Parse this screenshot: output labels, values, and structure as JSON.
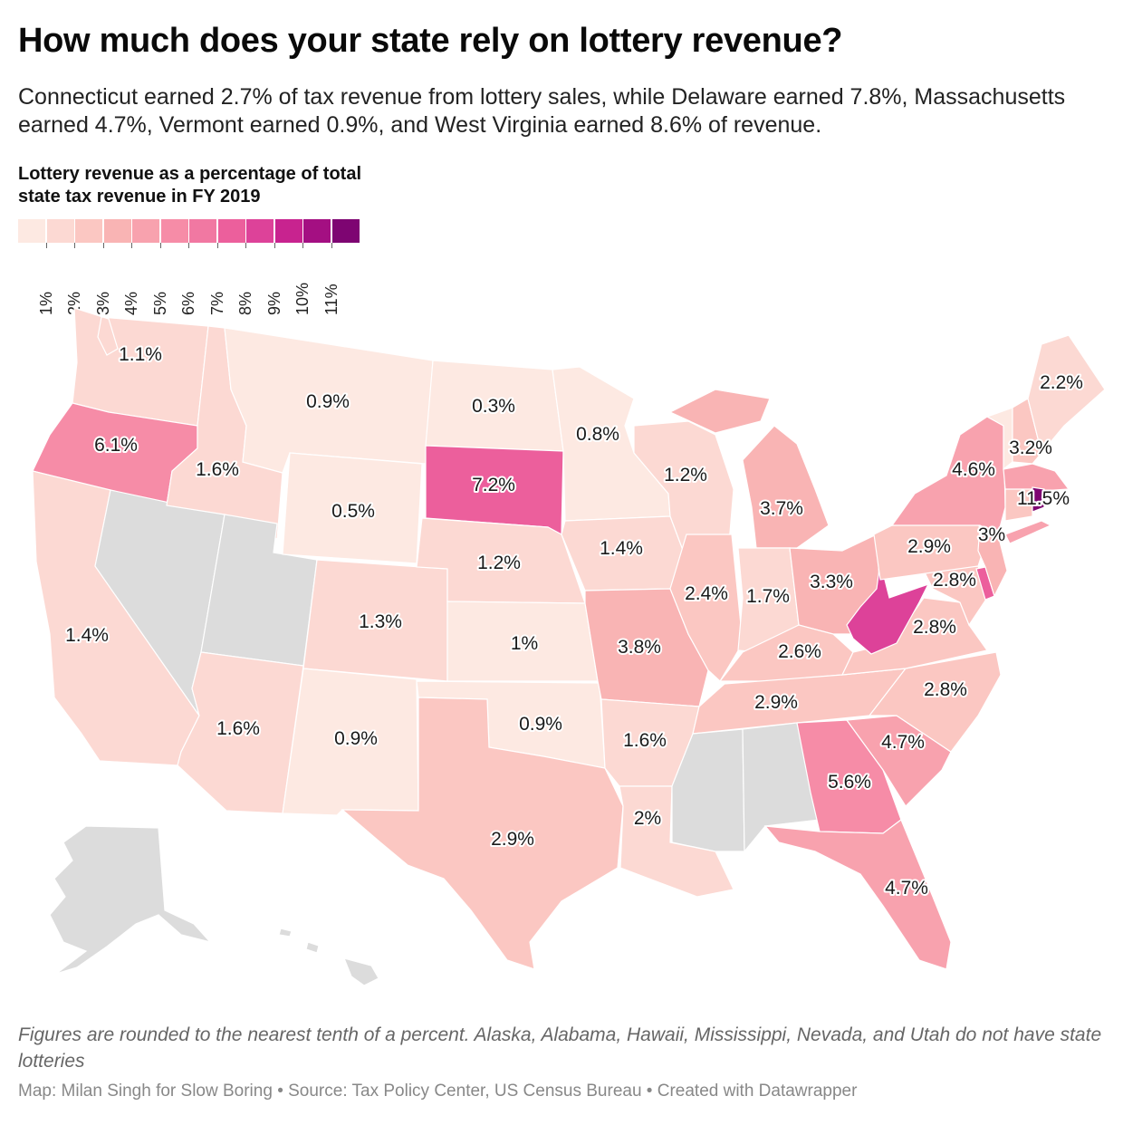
{
  "title": "How much does your state rely on lottery revenue?",
  "subtitle": "Connecticut earned 2.7% of tax revenue from lottery sales, while Delaware earned 7.8%, Massachusetts earned 4.7%, Vermont earned 0.9%, and West Virginia earned 8.6% of revenue.",
  "legend": {
    "title": "Lottery revenue as a percentage of total state tax revenue in FY 2019",
    "colors": [
      "#fde9e2",
      "#fcd9d3",
      "#fbc7c2",
      "#f9b4b4",
      "#f8a2ae",
      "#f68ca7",
      "#f178a2",
      "#ec5f9c",
      "#dd4299",
      "#c8238f",
      "#a40f82",
      "#7e0572"
    ],
    "ticks": [
      "1%",
      "2%",
      "3%",
      "4%",
      "5%",
      "6%",
      "7%",
      "8%",
      "9%",
      "10%",
      "11%"
    ]
  },
  "map_data": {
    "no_lottery_color": "#dcdcdc",
    "states": [
      {
        "state": "Washington",
        "label": "1.1%"
      },
      {
        "state": "Oregon",
        "label": "6.1%"
      },
      {
        "state": "California",
        "label": "1.4%"
      },
      {
        "state": "Idaho",
        "label": "1.6%"
      },
      {
        "state": "Montana",
        "label": "0.9%"
      },
      {
        "state": "Wyoming",
        "label": "0.5%"
      },
      {
        "state": "Colorado",
        "label": "1.3%"
      },
      {
        "state": "Arizona",
        "label": "1.6%"
      },
      {
        "state": "New Mexico",
        "label": "0.9%"
      },
      {
        "state": "North Dakota",
        "label": "0.3%"
      },
      {
        "state": "South Dakota",
        "label": "7.2%"
      },
      {
        "state": "Nebraska",
        "label": "1.2%"
      },
      {
        "state": "Kansas",
        "label": "1%"
      },
      {
        "state": "Oklahoma",
        "label": "0.9%"
      },
      {
        "state": "Texas",
        "label": "2.9%"
      },
      {
        "state": "Minnesota",
        "label": "0.8%"
      },
      {
        "state": "Iowa",
        "label": "1.4%"
      },
      {
        "state": "Missouri",
        "label": "3.8%"
      },
      {
        "state": "Arkansas",
        "label": "1.6%"
      },
      {
        "state": "Louisiana",
        "label": "2%"
      },
      {
        "state": "Wisconsin",
        "label": "1.2%"
      },
      {
        "state": "Illinois",
        "label": "2.4%"
      },
      {
        "state": "Michigan",
        "label": "3.7%"
      },
      {
        "state": "Indiana",
        "label": "1.7%"
      },
      {
        "state": "Ohio",
        "label": "3.3%"
      },
      {
        "state": "Kentucky",
        "label": "2.6%"
      },
      {
        "state": "Tennessee",
        "label": "2.9%"
      },
      {
        "state": "Georgia",
        "label": "5.6%"
      },
      {
        "state": "Florida",
        "label": "4.7%"
      },
      {
        "state": "South Carolina",
        "label": "4.7%"
      },
      {
        "state": "North Carolina",
        "label": "2.8%"
      },
      {
        "state": "Virginia",
        "label": "2.8%"
      },
      {
        "state": "Maryland",
        "label": "2.8%"
      },
      {
        "state": "Pennsylvania",
        "label": "2.9%"
      },
      {
        "state": "New Jersey",
        "label": "3%"
      },
      {
        "state": "New York",
        "label": "4.6%"
      },
      {
        "state": "New Hampshire",
        "label": "3.2%"
      },
      {
        "state": "Maine",
        "label": "2.2%"
      },
      {
        "state": "Rhode Island",
        "label": "11.5%"
      }
    ]
  },
  "footnote": "Figures are rounded to the nearest tenth of a percent. Alaska, Alabama, Hawaii, Mississippi, Nevada, and Utah do not have state lotteries",
  "credits": "Map: Milan Singh for Slow Boring • Source: Tax Policy Center, US Census Bureau • Created with Datawrapper"
}
